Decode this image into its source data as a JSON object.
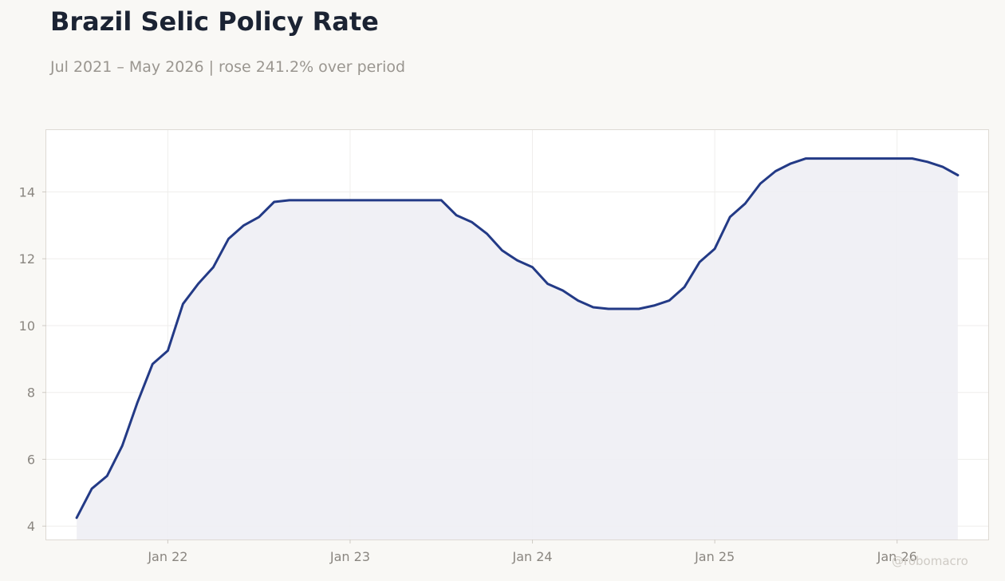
{
  "title": "Brazil Selic Policy Rate",
  "subtitle": "Jul 2021 – May 2026 | rose 241.2% over period",
  "watermark": "@robomacro",
  "colors": {
    "line": "#233a86",
    "fill": "#eeeef4",
    "background": "#f9f8f5",
    "plot": "#ffffff"
  },
  "chart_data": {
    "type": "area",
    "title": "Brazil Selic Policy Rate",
    "subtitle": "Jul 2021 – May 2026 | rose 241.2% over period",
    "xlabel": "",
    "ylabel": "",
    "xlim": [
      "2021-05",
      "2026-07"
    ],
    "ylim": [
      3.6,
      15.85
    ],
    "grid": true,
    "legend": "none",
    "x_ticks": [
      {
        "date": "2022-01",
        "label": "Jan 22"
      },
      {
        "date": "2023-01",
        "label": "Jan 23"
      },
      {
        "date": "2024-01",
        "label": "Jan 24"
      },
      {
        "date": "2025-01",
        "label": "Jan 25"
      },
      {
        "date": "2026-01",
        "label": "Jan 26"
      }
    ],
    "y_ticks": [
      4,
      6,
      8,
      10,
      12,
      14
    ],
    "series": [
      {
        "x": [
          "2021-07",
          "2021-08",
          "2021-09",
          "2021-10",
          "2021-11",
          "2021-12",
          "2022-01",
          "2022-02",
          "2022-03",
          "2022-04",
          "2022-05",
          "2022-06",
          "2022-07",
          "2022-08",
          "2022-09",
          "2022-10",
          "2022-11",
          "2022-12",
          "2023-01",
          "2023-02",
          "2023-03",
          "2023-04",
          "2023-05",
          "2023-06",
          "2023-07",
          "2023-08",
          "2023-09",
          "2023-10",
          "2023-11",
          "2023-12",
          "2024-01",
          "2024-02",
          "2024-03",
          "2024-04",
          "2024-05",
          "2024-06",
          "2024-07",
          "2024-08",
          "2024-09",
          "2024-10",
          "2024-11",
          "2024-12",
          "2025-01",
          "2025-02",
          "2025-03",
          "2025-04",
          "2025-05",
          "2025-06",
          "2025-07",
          "2025-08",
          "2025-09",
          "2025-10",
          "2025-11",
          "2025-12",
          "2026-01",
          "2026-02",
          "2026-03",
          "2026-04",
          "2026-05"
        ],
        "values": [
          4.25,
          5.12,
          5.5,
          6.4,
          7.7,
          8.85,
          9.25,
          10.65,
          11.25,
          11.75,
          12.6,
          13.0,
          13.25,
          13.7,
          13.75,
          13.75,
          13.75,
          13.75,
          13.75,
          13.75,
          13.75,
          13.75,
          13.75,
          13.75,
          13.75,
          13.3,
          13.1,
          12.75,
          12.25,
          11.95,
          11.75,
          11.25,
          11.05,
          10.75,
          10.55,
          10.5,
          10.5,
          10.5,
          10.6,
          10.75,
          11.15,
          11.9,
          12.3,
          13.25,
          13.65,
          14.25,
          14.62,
          14.85,
          15.0,
          15.0,
          15.0,
          15.0,
          15.0,
          15.0,
          15.0,
          15.0,
          14.9,
          14.75,
          14.5
        ]
      }
    ]
  }
}
